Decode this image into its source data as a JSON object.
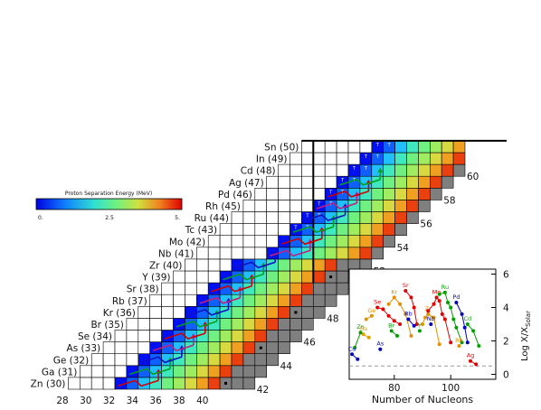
{
  "chart_data": [
    {
      "type": "heatmap",
      "elements": [
        {
          "name": "Zn",
          "z": 30,
          "label": "Zn (30)"
        },
        {
          "name": "Ga",
          "z": 31,
          "label": "Ga (31)"
        },
        {
          "name": "Ge",
          "z": 32,
          "label": "Ge (32)"
        },
        {
          "name": "As",
          "z": 33,
          "label": "As (33)"
        },
        {
          "name": "Se",
          "z": 34,
          "label": "Se (34)"
        },
        {
          "name": "Br",
          "z": 35,
          "label": "Br (35)"
        },
        {
          "name": "Kr",
          "z": 36,
          "label": "Kr (36)"
        },
        {
          "name": "Rb",
          "z": 37,
          "label": "Rb (37)"
        },
        {
          "name": "Sr",
          "z": 38,
          "label": "Sr (38)"
        },
        {
          "name": "Y",
          "z": 39,
          "label": "Y (39)"
        },
        {
          "name": "Zr",
          "z": 40,
          "label": "Zr (40)"
        },
        {
          "name": "Nb",
          "z": 41,
          "label": "Nb (41)"
        },
        {
          "name": "Mo",
          "z": 42,
          "label": "Mo (42)"
        },
        {
          "name": "Tc",
          "z": 43,
          "label": "Tc (43)"
        },
        {
          "name": "Ru",
          "z": 44,
          "label": "Ru (44)"
        },
        {
          "name": "Rh",
          "z": 45,
          "label": "Rh (45)"
        },
        {
          "name": "Pd",
          "z": 46,
          "label": "Pd (46)"
        },
        {
          "name": "Ag",
          "z": 47,
          "label": "Ag (47)"
        },
        {
          "name": "Cd",
          "z": 48,
          "label": "Cd (48)"
        },
        {
          "name": "In",
          "z": 49,
          "label": "In (49)"
        },
        {
          "name": "Sn",
          "z": 50,
          "label": "Sn (50)"
        }
      ],
      "x_ticks": [
        "28",
        "30",
        "32",
        "34",
        "36",
        "38",
        "40"
      ],
      "neutron_edge_labels": [
        {
          "n": 42,
          "label": "42"
        },
        {
          "n": 44,
          "label": "44"
        },
        {
          "n": 46,
          "label": "46"
        },
        {
          "n": 48,
          "label": "48"
        },
        {
          "n": 50,
          "label": "50"
        },
        {
          "n": 52,
          "label": "52"
        },
        {
          "n": 54,
          "label": "54"
        },
        {
          "n": 56,
          "label": "56"
        },
        {
          "n": 58,
          "label": "58"
        },
        {
          "n": 60,
          "label": "60"
        }
      ],
      "colorbar": {
        "title": "Proton Separation Energy (MeV)",
        "min": 0,
        "max": 5,
        "ticks": [
          "0.",
          "2.5",
          "5."
        ]
      },
      "magic_number_lines": [
        28,
        50
      ]
    },
    {
      "type": "scatter",
      "xlabel": "Number of Nucleons",
      "ylabel": "Log X/X",
      "ylabel_sub": "Solar",
      "xlim": [
        64,
        116
      ],
      "ylim": [
        -0.3,
        6.3
      ],
      "x_ticks": [
        "80",
        "100"
      ],
      "y_ticks": [
        "0",
        "2",
        "4",
        "6"
      ],
      "reference_line": 0.5,
      "series": [
        {
          "name": "Ge",
          "color": "#e09000",
          "points": [
            [
              70,
              3.3
            ],
            [
              72,
              3.5
            ]
          ]
        },
        {
          "name": "Ga",
          "color": "#e0a000",
          "points": [
            [
              69,
              2.4
            ],
            [
              71,
              2.2
            ]
          ]
        },
        {
          "name": "Zn",
          "color": "#00a000",
          "points": [
            [
              66,
              1.6
            ],
            [
              68,
              2.5
            ]
          ]
        },
        {
          "name": "Cu",
          "color": "#0000c0",
          "points": [
            [
              65,
              1.2
            ],
            [
              67,
              0.9
            ]
          ]
        },
        {
          "name": "Se",
          "color": "#e00000",
          "points": [
            [
              74,
              4.0
            ],
            [
              76,
              3.9
            ],
            [
              78,
              3.5
            ],
            [
              80,
              3.2
            ],
            [
              82,
              3.0
            ]
          ]
        },
        {
          "name": "As",
          "color": "#0000c0",
          "points": [
            [
              75,
              1.5
            ]
          ]
        },
        {
          "name": "Br",
          "color": "#00a000",
          "points": [
            [
              79,
              2.6
            ],
            [
              81,
              2.3
            ]
          ]
        },
        {
          "name": "Kr",
          "color": "#e09000",
          "points": [
            [
              78,
              4.2
            ],
            [
              80,
              4.6
            ],
            [
              82,
              4.2
            ],
            [
              84,
              3.6
            ],
            [
              86,
              2.3
            ]
          ]
        },
        {
          "name": "Sr",
          "color": "#e00000",
          "points": [
            [
              84,
              5.0
            ],
            [
              86,
              4.6
            ],
            [
              87,
              4.0
            ],
            [
              88,
              3.0
            ]
          ]
        },
        {
          "name": "Rb",
          "color": "#0000c0",
          "points": [
            [
              85,
              3.3
            ],
            [
              87,
              2.9
            ]
          ]
        },
        {
          "name": "Y",
          "color": "#00a000",
          "points": [
            [
              89,
              2.6
            ]
          ]
        },
        {
          "name": "Zr",
          "color": "#e09000",
          "points": [
            [
              90,
              3.0
            ],
            [
              91,
              3.4
            ],
            [
              92,
              3.6
            ],
            [
              94,
              3.4
            ],
            [
              96,
              1.8
            ]
          ]
        },
        {
          "name": "Nb",
          "color": "#0000c0",
          "points": [
            [
              93,
              3.0
            ]
          ]
        },
        {
          "name": "Mo",
          "color": "#e00000",
          "points": [
            [
              92,
              3.8
            ],
            [
              94,
              4.2
            ],
            [
              95,
              4.6
            ],
            [
              96,
              4.4
            ],
            [
              97,
              3.6
            ],
            [
              98,
              3.3
            ],
            [
              100,
              1.9
            ]
          ]
        },
        {
          "name": "Ru",
          "color": "#00a000",
          "points": [
            [
              96,
              4.8
            ],
            [
              98,
              4.9
            ],
            [
              99,
              4.3
            ],
            [
              100,
              4.0
            ],
            [
              101,
              3.3
            ],
            [
              102,
              2.8
            ],
            [
              104,
              1.9
            ]
          ]
        },
        {
          "name": "Pd",
          "color": "#0000c0",
          "points": [
            [
              102,
              4.3
            ],
            [
              104,
              3.6
            ],
            [
              105,
              2.8
            ],
            [
              106,
              1.9
            ]
          ]
        },
        {
          "name": "Rh",
          "color": "#e09000",
          "points": [
            [
              103,
              1.7
            ]
          ]
        },
        {
          "name": "Cd",
          "color": "#00a000",
          "points": [
            [
              106,
              3.0
            ],
            [
              108,
              2.6
            ],
            [
              110,
              1.7
            ]
          ]
        },
        {
          "name": "Ag",
          "color": "#e00000",
          "points": [
            [
              107,
              0.8
            ],
            [
              109,
              0.6
            ]
          ]
        }
      ]
    }
  ]
}
